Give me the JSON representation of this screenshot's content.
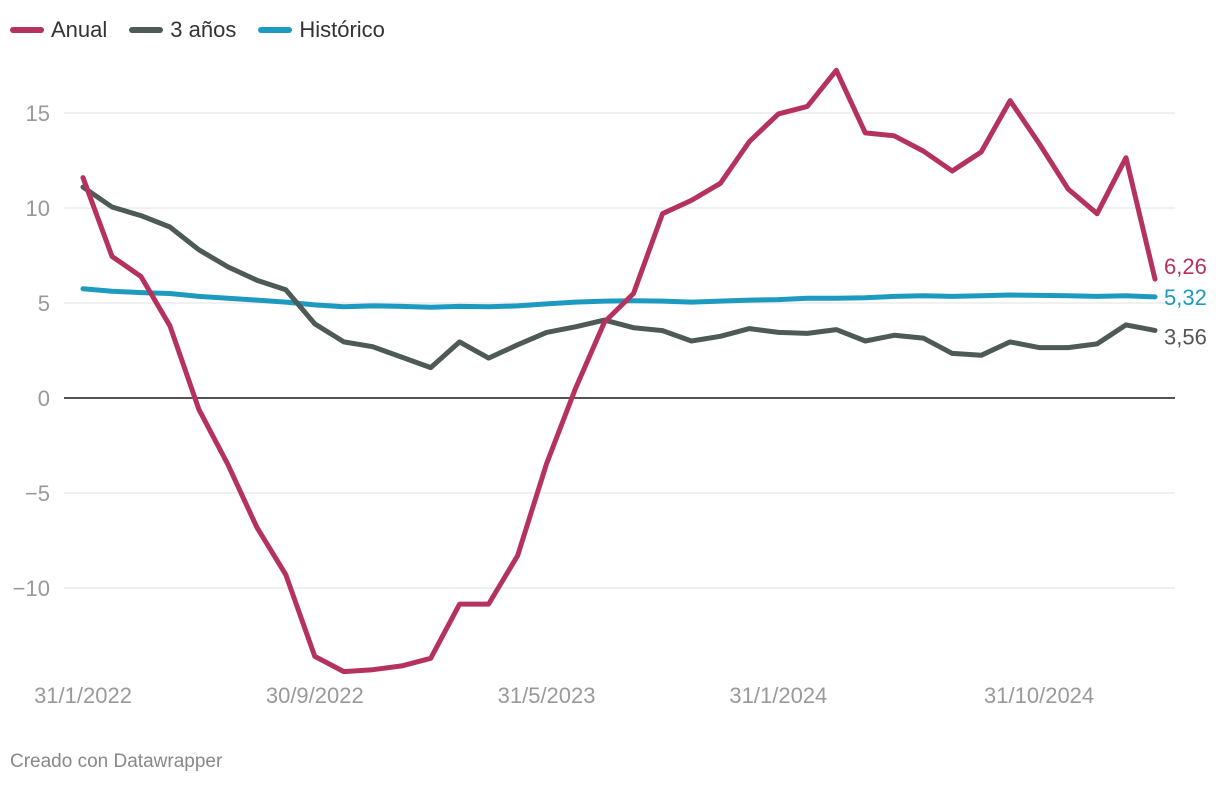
{
  "chart_data": {
    "type": "line",
    "title": "",
    "xlabel": "",
    "ylabel": "",
    "ylim": [
      -14.5,
      17.5
    ],
    "y_ticks": [
      15,
      10,
      5,
      0,
      -5,
      -10
    ],
    "y_tick_labels": [
      "15",
      "10",
      "5",
      "0",
      "−5",
      "−10"
    ],
    "x_ticks": [
      {
        "index": 0,
        "label": "31/1/2022"
      },
      {
        "index": 8,
        "label": "30/9/2022"
      },
      {
        "index": 16,
        "label": "31/5/2023"
      },
      {
        "index": 24,
        "label": "31/1/2024"
      },
      {
        "index": 33,
        "label": "31/10/2024"
      }
    ],
    "n_points": 38,
    "series": [
      {
        "name": "Anual",
        "color": "#b5325f",
        "end_label": "6,26",
        "values": [
          11.6,
          7.45,
          6.4,
          3.8,
          -0.6,
          -3.5,
          -6.8,
          -9.3,
          -13.6,
          -14.4,
          -14.3,
          -14.1,
          -13.7,
          -10.85,
          -10.85,
          -8.3,
          -3.45,
          0.5,
          4.0,
          5.5,
          9.7,
          10.4,
          11.3,
          13.5,
          14.95,
          15.35,
          17.25,
          13.95,
          13.8,
          13.0,
          11.95,
          12.95,
          15.65,
          13.4,
          11.0,
          9.7,
          12.65,
          6.26
        ]
      },
      {
        "name": "3 años",
        "color": "#4d5a55",
        "end_label": "3,56",
        "values": [
          11.1,
          10.05,
          9.6,
          9.0,
          7.8,
          6.9,
          6.2,
          5.7,
          3.9,
          2.95,
          2.7,
          2.15,
          1.6,
          2.95,
          2.1,
          2.8,
          3.45,
          3.75,
          4.1,
          3.7,
          3.55,
          3.0,
          3.25,
          3.65,
          3.45,
          3.4,
          3.6,
          3.0,
          3.3,
          3.15,
          2.35,
          2.25,
          2.95,
          2.65,
          2.65,
          2.85,
          3.85,
          3.56
        ]
      },
      {
        "name": "Histórico",
        "color": "#1d9ac0",
        "end_label": "5,32",
        "values": [
          5.75,
          5.62,
          5.55,
          5.5,
          5.35,
          5.25,
          5.15,
          5.05,
          4.9,
          4.8,
          4.85,
          4.82,
          4.78,
          4.82,
          4.8,
          4.85,
          4.95,
          5.05,
          5.1,
          5.12,
          5.1,
          5.05,
          5.1,
          5.15,
          5.18,
          5.25,
          5.25,
          5.28,
          5.35,
          5.38,
          5.35,
          5.38,
          5.42,
          5.4,
          5.38,
          5.35,
          5.38,
          5.32
        ]
      }
    ],
    "zero_line": true,
    "gridlines": true,
    "legend_position": "top-left"
  },
  "legend": [
    {
      "label": "Anual",
      "color": "#b5325f"
    },
    {
      "label": "3 años",
      "color": "#4d5a55"
    },
    {
      "label": "Histórico",
      "color": "#1d9ac0"
    }
  ],
  "footer": {
    "credit": "Creado con Datawrapper"
  }
}
